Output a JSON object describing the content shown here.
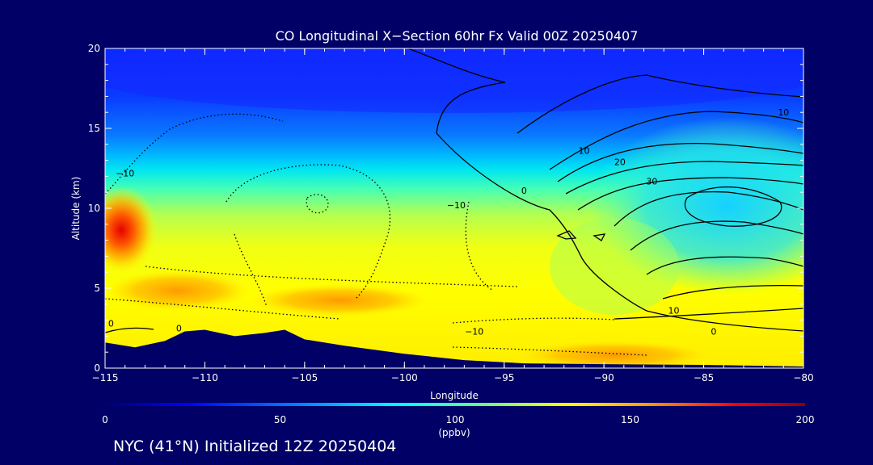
{
  "footer_text": "NYC (41°N) Initialized 12Z 20250404",
  "chart_data": {
    "type": "heatmap",
    "title": "CO Longitudinal X−Section 60hr  Fx Valid 00Z 20250407",
    "xlabel": "Longitude",
    "ylabel": "Altitude (km)",
    "xlim": [
      -115,
      -80
    ],
    "ylim": [
      0,
      20
    ],
    "x_ticks": [
      -115,
      -110,
      -105,
      -100,
      -95,
      -90,
      -85,
      -80
    ],
    "y_ticks": [
      0,
      5,
      10,
      15,
      20
    ],
    "colorbar": {
      "label": "(ppbv)",
      "range": [
        0,
        200
      ],
      "ticks": [
        0,
        50,
        100,
        150,
        200
      ],
      "colors": [
        "#00006e",
        "#0000ff",
        "#0096ff",
        "#00ffff",
        "#78ff78",
        "#ffff00",
        "#ff9600",
        "#ff0000",
        "#8c0000"
      ]
    },
    "co_field_samples": [
      {
        "x": -115,
        "y": 8.5,
        "value": 170
      },
      {
        "x": -112,
        "y": 4.5,
        "value": 140
      },
      {
        "x": -103,
        "y": 4.3,
        "value": 135
      },
      {
        "x": -100,
        "y": 6.5,
        "value": 110
      },
      {
        "x": -88,
        "y": 0.6,
        "value": 135
      },
      {
        "x": -85,
        "y": 10.5,
        "value": 90
      },
      {
        "x": -100,
        "y": 17.5,
        "value": 30
      }
    ],
    "terrain": [
      {
        "x": -115,
        "alt": 1.6
      },
      {
        "x": -113.5,
        "alt": 1.3
      },
      {
        "x": -112,
        "alt": 1.7
      },
      {
        "x": -111,
        "alt": 2.3
      },
      {
        "x": -110,
        "alt": 2.4
      },
      {
        "x": -108.5,
        "alt": 2.0
      },
      {
        "x": -107,
        "alt": 2.2
      },
      {
        "x": -106,
        "alt": 2.4
      },
      {
        "x": -105,
        "alt": 1.8
      },
      {
        "x": -103,
        "alt": 1.4
      },
      {
        "x": -100,
        "alt": 0.9
      },
      {
        "x": -97,
        "alt": 0.5
      },
      {
        "x": -94,
        "alt": 0.3
      },
      {
        "x": -90,
        "alt": 0.25
      },
      {
        "x": -85,
        "alt": 0.2
      },
      {
        "x": -80,
        "alt": 0.1
      }
    ],
    "contour_labels": [
      {
        "text": "10",
        "x": -81,
        "y": 15.8
      },
      {
        "text": "10",
        "x": -91,
        "y": 13.4
      },
      {
        "text": "20",
        "x": -89.2,
        "y": 12.7
      },
      {
        "text": "30",
        "x": -87.6,
        "y": 11.5
      },
      {
        "text": "0",
        "x": -94,
        "y": 10.9
      },
      {
        "text": "−10",
        "x": -97.4,
        "y": 10
      },
      {
        "text": "−10",
        "x": -114,
        "y": 12
      },
      {
        "text": "10",
        "x": -86.5,
        "y": 3.4
      },
      {
        "text": "0",
        "x": -84.5,
        "y": 2.1
      },
      {
        "text": "−10",
        "x": -96.5,
        "y": 2.1
      },
      {
        "text": "0",
        "x": -111.3,
        "y": 2.3
      },
      {
        "text": "0",
        "x": -114.7,
        "y": 2.6
      }
    ]
  }
}
